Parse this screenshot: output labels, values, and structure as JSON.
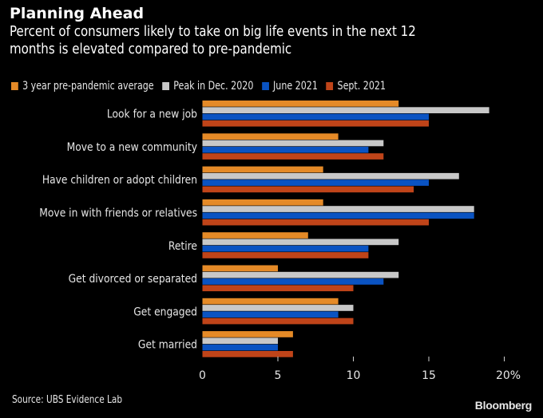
{
  "header": {
    "title": "Planning Ahead",
    "subtitle_line1": "Percent of consumers likely to take on big life events in the next 12",
    "subtitle_line2": "months is elevated compared to pre-pandemic"
  },
  "footer": {
    "source": "Source: UBS Evidence Lab",
    "brand": "Bloomberg"
  },
  "chart_data": {
    "type": "bar",
    "orientation": "horizontal",
    "title": "Planning Ahead",
    "subtitle": "Percent of consumers likely to take on big life events in the next 12 months is elevated compared to pre-pandemic",
    "xlabel": "",
    "ylabel": "",
    "xlim": [
      0,
      20
    ],
    "x_ticks": [
      0,
      5,
      10,
      15,
      20
    ],
    "x_tick_labels": [
      "0",
      "5",
      "10",
      "15",
      "20%"
    ],
    "grid": false,
    "legend_position": "top-left",
    "categories": [
      "Look for a new job",
      "Move to a new community",
      "Have children or adopt children",
      "Move in with friends or relatives",
      "Retire",
      "Get divorced or separated",
      "Get engaged",
      "Get married"
    ],
    "series": [
      {
        "name": "3 year pre-pandemic average",
        "color": "#e58a27",
        "values": [
          13,
          9,
          8,
          8,
          7,
          5,
          9,
          6
        ]
      },
      {
        "name": "Peak in Dec. 2020",
        "color": "#c8c8c8",
        "values": [
          19,
          12,
          17,
          18,
          13,
          13,
          10,
          5
        ]
      },
      {
        "name": "June 2021",
        "color": "#0a53c2",
        "values": [
          15,
          11,
          15,
          18,
          11,
          12,
          9,
          5
        ]
      },
      {
        "name": "Sept. 2021",
        "color": "#bf4419",
        "values": [
          15,
          12,
          14,
          15,
          11,
          10,
          10,
          6
        ]
      }
    ]
  }
}
